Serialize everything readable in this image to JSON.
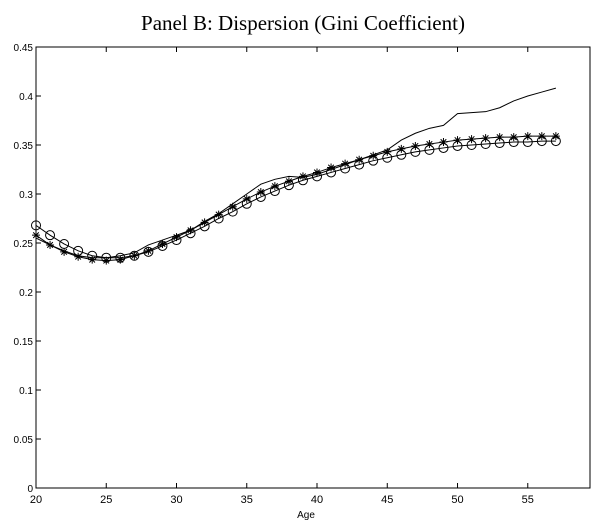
{
  "chart_data": {
    "type": "line",
    "title": "Panel B: Dispersion (Gini Coefficient)",
    "xlabel": "Age",
    "x": [
      20,
      21,
      22,
      23,
      24,
      25,
      26,
      27,
      28,
      29,
      30,
      31,
      32,
      33,
      34,
      35,
      36,
      37,
      38,
      39,
      40,
      41,
      42,
      43,
      44,
      45,
      46,
      47,
      48,
      49,
      50,
      51,
      52,
      53,
      54,
      55,
      56,
      57
    ],
    "series": [
      {
        "color": "#000000",
        "marker": "none",
        "values": [
          0.255,
          0.248,
          0.242,
          0.237,
          0.235,
          0.235,
          0.237,
          0.24,
          0.248,
          0.253,
          0.258,
          0.263,
          0.272,
          0.28,
          0.29,
          0.3,
          0.31,
          0.315,
          0.318,
          0.317,
          0.32,
          0.325,
          0.33,
          0.335,
          0.34,
          0.345,
          0.355,
          0.362,
          0.367,
          0.37,
          0.382,
          0.383,
          0.384,
          0.388,
          0.395,
          0.4,
          0.404,
          0.408
        ]
      },
      {
        "color": "#000000",
        "marker": "star",
        "values": [
          0.258,
          0.248,
          0.241,
          0.236,
          0.233,
          0.232,
          0.233,
          0.237,
          0.242,
          0.249,
          0.256,
          0.263,
          0.271,
          0.279,
          0.287,
          0.295,
          0.302,
          0.308,
          0.313,
          0.318,
          0.322,
          0.327,
          0.331,
          0.335,
          0.339,
          0.343,
          0.346,
          0.349,
          0.351,
          0.353,
          0.355,
          0.356,
          0.357,
          0.358,
          0.358,
          0.359,
          0.359,
          0.359
        ]
      },
      {
        "color": "#000000",
        "marker": "circle",
        "values": [
          0.268,
          0.258,
          0.249,
          0.242,
          0.237,
          0.235,
          0.235,
          0.237,
          0.241,
          0.247,
          0.253,
          0.26,
          0.267,
          0.275,
          0.282,
          0.29,
          0.297,
          0.303,
          0.309,
          0.314,
          0.318,
          0.322,
          0.326,
          0.33,
          0.334,
          0.337,
          0.34,
          0.343,
          0.345,
          0.347,
          0.349,
          0.35,
          0.351,
          0.352,
          0.353,
          0.353,
          0.354,
          0.354
        ]
      }
    ],
    "xlim": [
      20,
      59.5
    ],
    "xticks": [
      20,
      25,
      30,
      35,
      40,
      45,
      50,
      55
    ],
    "ylim": [
      0,
      0.45
    ],
    "yticks": [
      0,
      0.05,
      0.1,
      0.15,
      0.2,
      0.25,
      0.3,
      0.35,
      0.4,
      0.45
    ],
    "grid": false
  }
}
